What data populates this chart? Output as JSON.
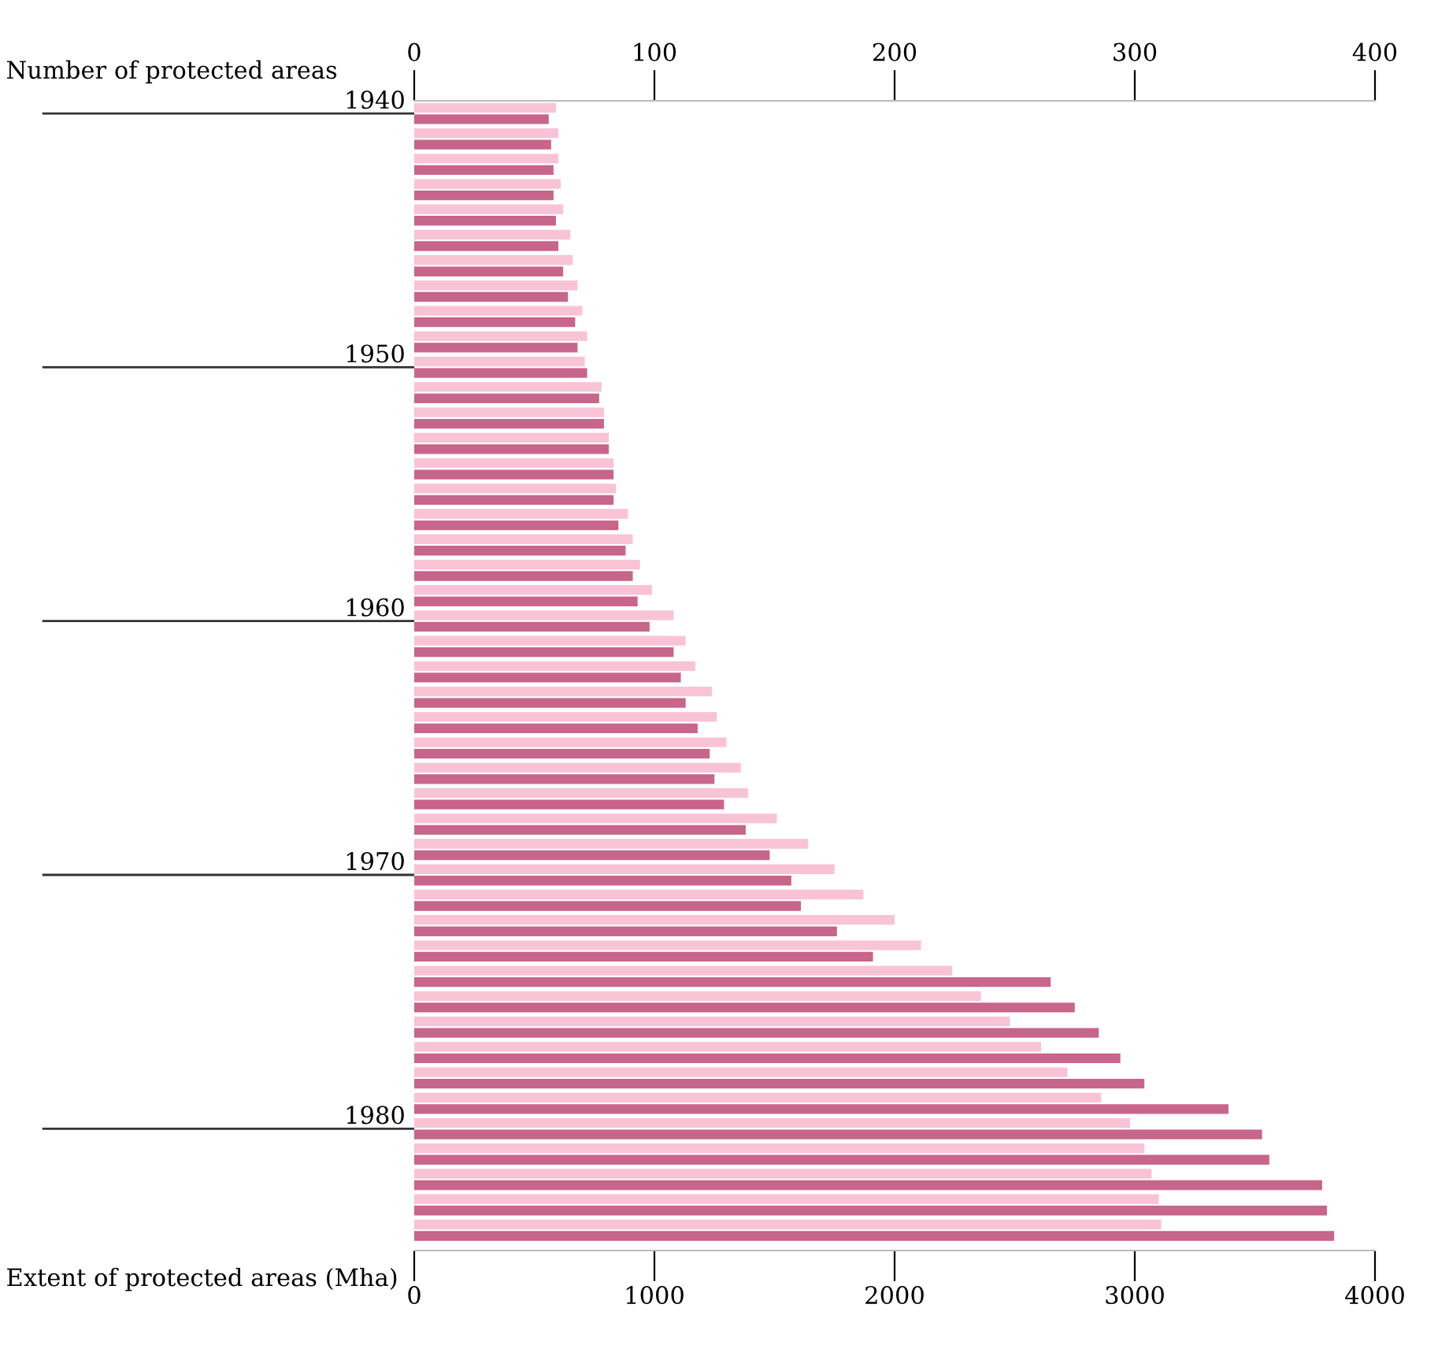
{
  "chart_data": {
    "type": "bar",
    "orientation": "horizontal",
    "xlabel": "Extent of protected areas (Mha)",
    "x2label": "Number of protected areas",
    "categories": [
      "1940",
      null,
      null,
      null,
      null,
      null,
      null,
      null,
      null,
      null,
      "1950",
      null,
      null,
      null,
      null,
      null,
      null,
      null,
      null,
      null,
      "1960",
      null,
      null,
      null,
      null,
      null,
      null,
      null,
      null,
      null,
      "1970",
      null,
      null,
      null,
      null,
      null,
      null,
      null,
      null,
      null,
      "1980",
      null,
      null,
      null,
      null
    ],
    "series": [
      {
        "axis": "x2",
        "color": "#f9c3d6",
        "values": [
          59,
          60,
          60,
          61,
          62,
          65,
          66,
          68,
          70,
          72,
          71,
          78,
          79,
          81,
          83,
          84,
          89,
          91,
          94,
          99,
          108,
          113,
          117,
          124,
          126,
          130,
          136,
          139,
          151,
          164,
          175,
          187,
          200,
          211,
          224,
          236,
          248,
          261,
          272,
          286,
          298,
          304,
          307,
          310,
          311
        ]
      },
      {
        "color": "#c8658b",
        "values": [
          560,
          570,
          580,
          580,
          590,
          600,
          620,
          640,
          670,
          680,
          720,
          770,
          790,
          810,
          830,
          830,
          850,
          880,
          910,
          930,
          980,
          1080,
          1110,
          1130,
          1180,
          1230,
          1250,
          1290,
          1380,
          1480,
          1570,
          1610,
          1760,
          1910,
          2650,
          2750,
          2850,
          2940,
          3040,
          3390,
          3530,
          3560,
          3780,
          3800,
          3830
        ]
      }
    ],
    "xlim": [
      0,
      4000
    ],
    "xticks": [
      0,
      1000,
      2000,
      3000,
      4000
    ],
    "x2lim": [
      0,
      400
    ],
    "x2ticks": [
      0,
      100,
      200,
      300,
      400
    ]
  }
}
